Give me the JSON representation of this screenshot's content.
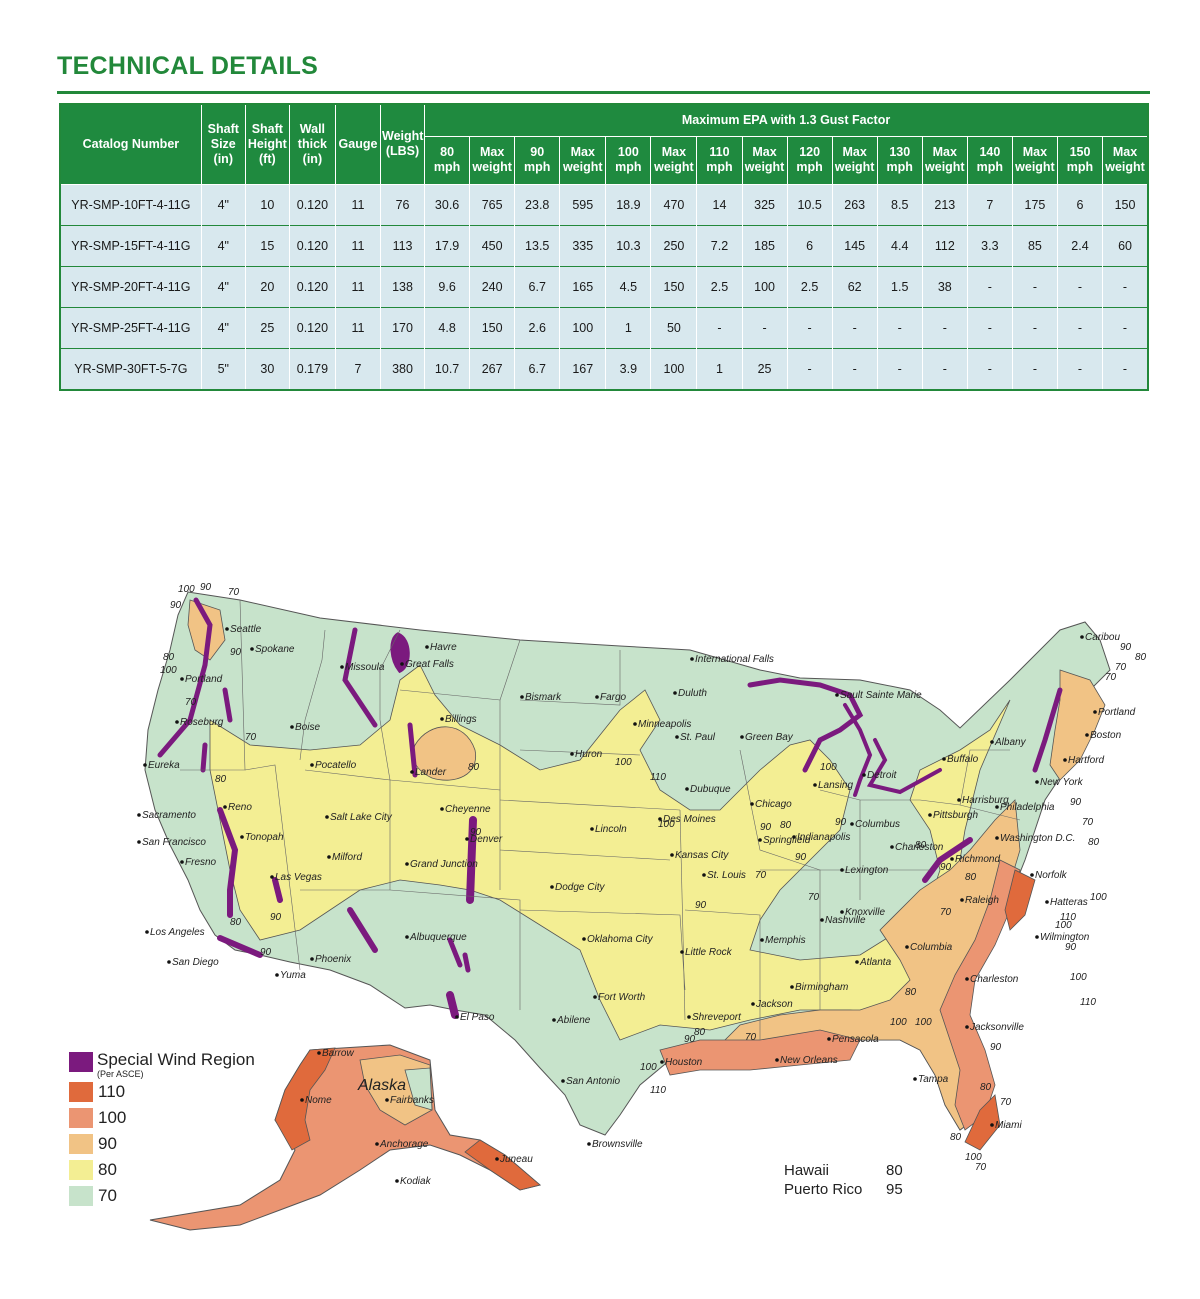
{
  "title": "TECHNICAL DETAILS",
  "table": {
    "header_left": [
      {
        "key": "catalog",
        "label": "Catalog Number"
      },
      {
        "key": "shaft_size",
        "label": "Shaft Size (in)"
      },
      {
        "key": "shaft_height",
        "label": "Shaft Height (ft)"
      },
      {
        "key": "wall_thick",
        "label": "Wall thick (in)"
      },
      {
        "key": "gauge",
        "label": "Gauge"
      },
      {
        "key": "weight",
        "label": "Weight (LBS)"
      }
    ],
    "group_header": "Maximum EPA with 1.3 Gust Factor",
    "sub_headers": [
      "80 mph",
      "Max weight",
      "90 mph",
      "Max weight",
      "100 mph",
      "Max weight",
      "110 mph",
      "Max weight",
      "120 mph",
      "Max weight",
      "130 mph",
      "Max weight",
      "140 mph",
      "Max weight",
      "150 mph",
      "Max weight"
    ],
    "rows": [
      [
        "YR-SMP-10FT-4-11G",
        "4\"",
        "10",
        "0.120",
        "11",
        "76",
        "30.6",
        "765",
        "23.8",
        "595",
        "18.9",
        "470",
        "14",
        "325",
        "10.5",
        "263",
        "8.5",
        "213",
        "7",
        "175",
        "6",
        "150"
      ],
      [
        "YR-SMP-15FT-4-11G",
        "4\"",
        "15",
        "0.120",
        "11",
        "113",
        "17.9",
        "450",
        "13.5",
        "335",
        "10.3",
        "250",
        "7.2",
        "185",
        "6",
        "145",
        "4.4",
        "112",
        "3.3",
        "85",
        "2.4",
        "60"
      ],
      [
        "YR-SMP-20FT-4-11G",
        "4\"",
        "20",
        "0.120",
        "11",
        "138",
        "9.6",
        "240",
        "6.7",
        "165",
        "4.5",
        "150",
        "2.5",
        "100",
        "2.5",
        "62",
        "1.5",
        "38",
        "-",
        "-",
        "-",
        "-"
      ],
      [
        "YR-SMP-25FT-4-11G",
        "4\"",
        "25",
        "0.120",
        "11",
        "170",
        "4.8",
        "150",
        "2.6",
        "100",
        "1",
        "50",
        "-",
        "-",
        "-",
        "-",
        "-",
        "-",
        "-",
        "-",
        "-",
        "-"
      ],
      [
        "YR-SMP-30FT-5-7G",
        "5\"",
        "30",
        "0.179",
        "7",
        "380",
        "10.7",
        "267",
        "6.7",
        "167",
        "3.9",
        "100",
        "1",
        "25",
        "-",
        "-",
        "-",
        "-",
        "-",
        "-",
        "-",
        "-"
      ]
    ]
  },
  "map": {
    "legend_title": "Special Wind Region",
    "legend_subtitle": "(Per ASCE)",
    "legend_items": [
      {
        "label": "110",
        "color": "#e06a3c"
      },
      {
        "label": "100",
        "color": "#eb9572"
      },
      {
        "label": "90",
        "color": "#f1c385"
      },
      {
        "label": "80",
        "color": "#f3ee93"
      },
      {
        "label": "70",
        "color": "#c7e3cb"
      }
    ],
    "special_color": "#7b1a7e",
    "extras": [
      {
        "name": "Hawaii",
        "value": "80"
      },
      {
        "name": "Puerto Rico",
        "value": "95"
      }
    ],
    "alaska_label": "Alaska",
    "cities": [
      {
        "name": "Seattle"
      },
      {
        "name": "Spokane"
      },
      {
        "name": "Portland"
      },
      {
        "name": "Roseburg"
      },
      {
        "name": "Eureka"
      },
      {
        "name": "Boise"
      },
      {
        "name": "Pocatello"
      },
      {
        "name": "Missoula"
      },
      {
        "name": "Great Falls"
      },
      {
        "name": "Havre"
      },
      {
        "name": "Billings"
      },
      {
        "name": "Lander"
      },
      {
        "name": "Reno"
      },
      {
        "name": "Sacramento"
      },
      {
        "name": "San Francisco"
      },
      {
        "name": "Tonopah"
      },
      {
        "name": "Fresno"
      },
      {
        "name": "Las Vegas"
      },
      {
        "name": "Salt Lake City"
      },
      {
        "name": "Milford"
      },
      {
        "name": "Cheyenne"
      },
      {
        "name": "Denver"
      },
      {
        "name": "Grand Junction"
      },
      {
        "name": "Los Angeles"
      },
      {
        "name": "San Diego"
      },
      {
        "name": "Yuma"
      },
      {
        "name": "Phoenix"
      },
      {
        "name": "Albuquerque"
      },
      {
        "name": "El Paso"
      },
      {
        "name": "Bismark"
      },
      {
        "name": "Fargo"
      },
      {
        "name": "Huron"
      },
      {
        "name": "Minneapolis"
      },
      {
        "name": "St. Paul"
      },
      {
        "name": "Duluth"
      },
      {
        "name": "International Falls"
      },
      {
        "name": "Lincoln"
      },
      {
        "name": "Des Moines"
      },
      {
        "name": "Dubuque"
      },
      {
        "name": "Kansas City"
      },
      {
        "name": "Dodge City"
      },
      {
        "name": "Oklahoma City"
      },
      {
        "name": "Fort Worth"
      },
      {
        "name": "Abilene"
      },
      {
        "name": "San Antonio"
      },
      {
        "name": "Houston"
      },
      {
        "name": "Brownsville"
      },
      {
        "name": "Shreveport"
      },
      {
        "name": "Little Rock"
      },
      {
        "name": "St. Louis"
      },
      {
        "name": "Springfield"
      },
      {
        "name": "Memphis"
      },
      {
        "name": "Jackson"
      },
      {
        "name": "New Orleans"
      },
      {
        "name": "Pensacola"
      },
      {
        "name": "Birmingham"
      },
      {
        "name": "Atlanta"
      },
      {
        "name": "Nashville"
      },
      {
        "name": "Knoxville"
      },
      {
        "name": "Chicago"
      },
      {
        "name": "Green Bay"
      },
      {
        "name": "Lansing"
      },
      {
        "name": "Detroit"
      },
      {
        "name": "Sault Sainte Marie"
      },
      {
        "name": "Indianapolis"
      },
      {
        "name": "Columbus"
      },
      {
        "name": "Lexington"
      },
      {
        "name": "Charleston"
      },
      {
        "name": "Pittsburgh"
      },
      {
        "name": "Buffalo"
      },
      {
        "name": "Harrisburg"
      },
      {
        "name": "Philadelphia"
      },
      {
        "name": "Washington D.C."
      },
      {
        "name": "Richmond"
      },
      {
        "name": "Norfolk"
      },
      {
        "name": "Hatteras"
      },
      {
        "name": "Raleigh"
      },
      {
        "name": "Wilmington"
      },
      {
        "name": "Columbia"
      },
      {
        "name": "Charleston"
      },
      {
        "name": "Jacksonville"
      },
      {
        "name": "Tampa"
      },
      {
        "name": "Miami"
      },
      {
        "name": "New York"
      },
      {
        "name": "Hartford"
      },
      {
        "name": "Boston"
      },
      {
        "name": "Albany"
      },
      {
        "name": "Portland"
      },
      {
        "name": "Caribou"
      },
      {
        "name": "Barrow"
      },
      {
        "name": "Nome"
      },
      {
        "name": "Fairbanks"
      },
      {
        "name": "Anchorage"
      },
      {
        "name": "Juneau"
      },
      {
        "name": "Kodiak"
      }
    ],
    "speed_labels": [
      "100",
      "90",
      "70",
      "80",
      "100",
      "90",
      "70",
      "80",
      "90",
      "80",
      "70",
      "90",
      "80",
      "90",
      "90",
      "80",
      "90",
      "70",
      "70",
      "80",
      "90",
      "80",
      "70",
      "80",
      "100",
      "110",
      "90",
      "100",
      "110",
      "100",
      "90",
      "70",
      "70",
      "80",
      "90",
      "70",
      "80",
      "90",
      "100",
      "100",
      "110",
      "100",
      "90",
      "100",
      "110",
      "90",
      "80",
      "70",
      "100",
      "100",
      "90",
      "80",
      "70",
      "70",
      "80",
      "100",
      "90"
    ]
  }
}
